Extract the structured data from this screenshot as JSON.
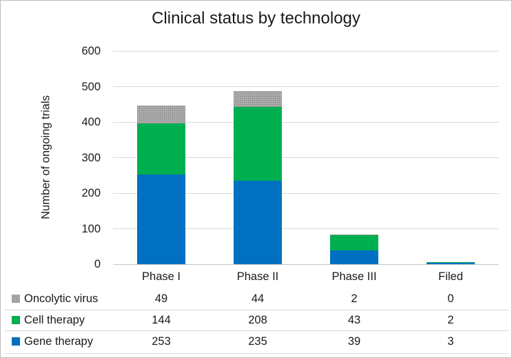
{
  "window": {
    "background": "#FFFFFF",
    "border_color": "#BDBDBD"
  },
  "chart_data": {
    "type": "bar",
    "stacked": true,
    "title": "Clinical status by technology",
    "xlabel": "",
    "ylabel": "Number of ongoing trials",
    "ylim": [
      0,
      600
    ],
    "yticks": [
      0,
      100,
      200,
      300,
      400,
      500,
      600
    ],
    "grid": true,
    "gridline_color": "#D9D9D9",
    "axis_line_color": "#C6C6C6",
    "text_color": "#1A1A1A",
    "legend_position": "table-left",
    "categories": [
      "Phase I",
      "Phase II",
      "Phase III",
      "Filed"
    ],
    "series": [
      {
        "name": "Gene therapy",
        "color": "#0070C0",
        "fill": "solid",
        "values": [
          253,
          235,
          39,
          3
        ]
      },
      {
        "name": "Cell therapy",
        "color": "#00B050",
        "fill": "solid",
        "values": [
          144,
          208,
          43,
          2
        ]
      },
      {
        "name": "Oncolytic virus",
        "color": "#ABABAB",
        "fill": "dotted-pattern",
        "values": [
          49,
          44,
          2,
          0
        ]
      }
    ],
    "data_table": {
      "shown": true,
      "rows": [
        {
          "label": "Oncolytic virus",
          "swatch_color": "#ABABAB",
          "swatch_fill": "dotted-pattern",
          "values": [
            "49",
            "44",
            "2",
            "0"
          ]
        },
        {
          "label": "Cell therapy",
          "swatch_color": "#00B050",
          "swatch_fill": "solid",
          "values": [
            "144",
            "208",
            "43",
            "2"
          ]
        },
        {
          "label": "Gene therapy",
          "swatch_color": "#0070C0",
          "swatch_fill": "solid",
          "values": [
            "253",
            "235",
            "39",
            "3"
          ]
        }
      ]
    }
  }
}
